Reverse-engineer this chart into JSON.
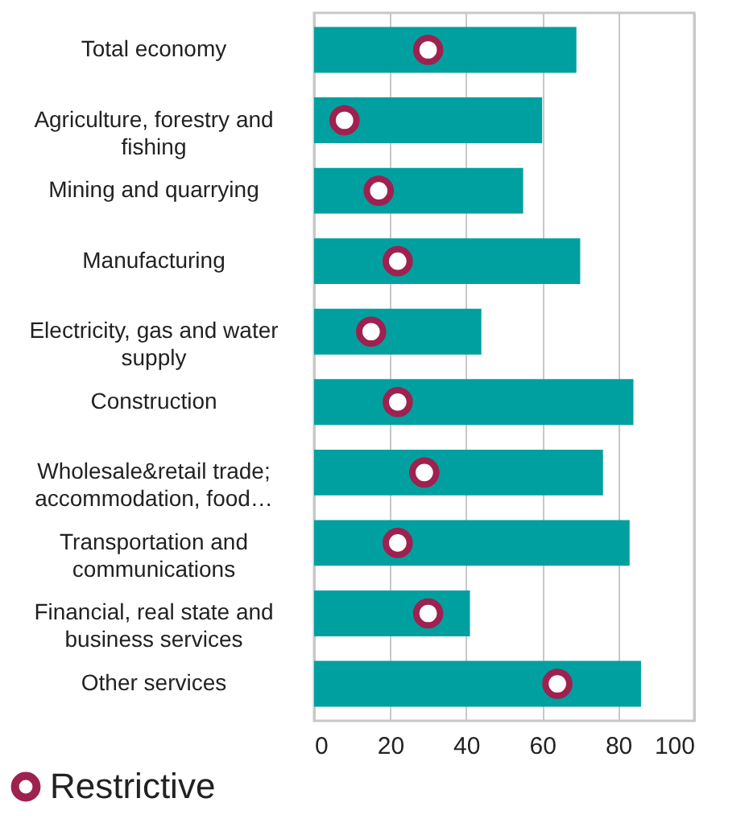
{
  "chart_data": {
    "type": "bar",
    "orientation": "horizontal",
    "categories": [
      "Total economy",
      "Agriculture, forestry and\nfishing",
      "Mining and quarrying",
      "Manufacturing",
      "Electricity, gas and water\nsupply",
      "Construction",
      "Wholesale&retail trade;\naccommodation, food…",
      "Transportation and\ncommunications",
      "Financial, real state and\nbusiness services",
      "Other services"
    ],
    "series": [
      {
        "color": "#00a0a0",
        "values": [
          69,
          60,
          55,
          70,
          44,
          84,
          76,
          83,
          41,
          86
        ]
      },
      {
        "type": "scatter",
        "name": "Restrictive",
        "color": "#9e2150",
        "marker": "circle",
        "values": [
          30,
          8,
          17,
          22,
          15,
          22,
          29,
          22,
          30,
          64
        ]
      }
    ],
    "xlim": [
      0,
      100
    ],
    "xticks": [
      0,
      20,
      40,
      60,
      80,
      100
    ],
    "grid": "x",
    "legend": "bottom left"
  }
}
